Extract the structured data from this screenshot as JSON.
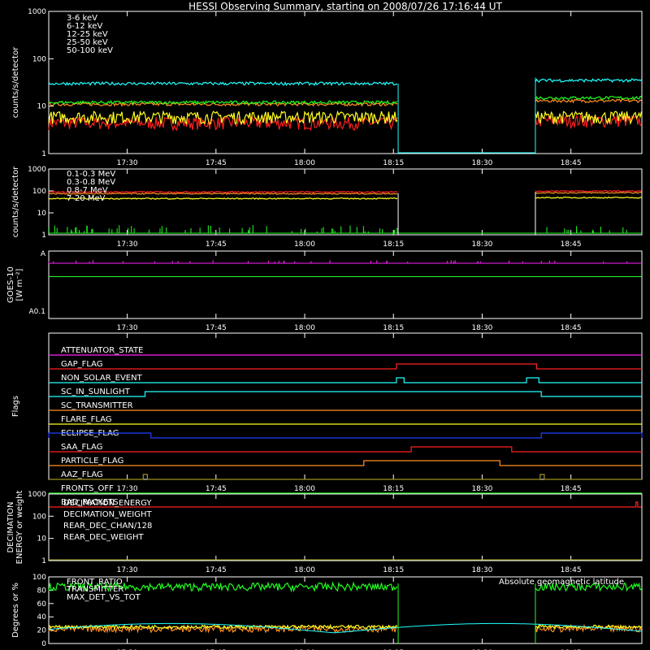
{
  "chart_data": {
    "title": "HESSI Observing Summary, starting on 2008/07/26 17:16:44 UT",
    "time_ticks": [
      "17:30",
      "17:45",
      "18:00",
      "18:15",
      "18:30",
      "18:45"
    ],
    "time_tick_minutes": [
      30,
      45,
      60,
      75,
      90,
      105
    ],
    "time_range_minutes": [
      16.73,
      117
    ],
    "data_gap_minutes": [
      75.8,
      99.0
    ],
    "panels": [
      {
        "type": "line",
        "scale": "log",
        "ylabel": "counts/s/detector",
        "ylim": [
          1,
          1000
        ],
        "yticks": [
          "1",
          "10",
          "100",
          "1000"
        ],
        "series": [
          {
            "name": "3-6 keV",
            "color": "#ff2020",
            "level": 4.5,
            "level_after": 5
          },
          {
            "name": "6-12 keV",
            "color": "#ff9020",
            "level": 11,
            "level_after": 13
          },
          {
            "name": "12-25 keV",
            "color": "#ffff20",
            "level": 6,
            "level_after": 6
          },
          {
            "name": "25-50 keV",
            "color": "#20ff20",
            "level": 12,
            "level_after": 15
          },
          {
            "name": "50-100 keV",
            "color": "#20ffff",
            "level": 30,
            "level_after": 35
          }
        ]
      },
      {
        "type": "line",
        "scale": "log",
        "ylabel": "counts/s/detector",
        "ylim": [
          1,
          1000
        ],
        "yticks": [
          "1",
          "10",
          "100",
          "1000"
        ],
        "series": [
          {
            "name": "0.1-0.3 MeV",
            "color": "#ff2020",
            "level": 90
          },
          {
            "name": "0.3-0.8 MeV",
            "color": "#ff9020",
            "level": 75
          },
          {
            "name": "0.8-7 MeV",
            "color": "#ffff20",
            "level": 45
          },
          {
            "name": "7-20 MeV",
            "color": "#20ff20",
            "level": 1
          }
        ]
      },
      {
        "type": "line",
        "ylabel": "GOES-10",
        "yunit": "[W m⁻²]",
        "yticks": [
          "A",
          "A0.1"
        ],
        "series": [
          {
            "color": "#ff20ff",
            "level_frac": 0.18
          },
          {
            "color": "#20ff20",
            "level_frac": 0.38
          }
        ]
      },
      {
        "type": "flags",
        "ylabel": "Flags",
        "flags": [
          {
            "name": "ATTENUATOR_STATE",
            "color": "#ff20ff",
            "on": []
          },
          {
            "name": "GAP_FLAG",
            "color": "#ff2020",
            "on": [
              [
                75.5,
                99.2
              ]
            ]
          },
          {
            "name": "NON_SOLAR_EVENT",
            "color": "#20ffff",
            "on": [
              [
                75.5,
                76.8
              ],
              [
                97.5,
                99.6
              ]
            ]
          },
          {
            "name": "SC_IN_SUNLIGHT",
            "color": "#20ffff",
            "on": [
              [
                33,
                100
              ]
            ]
          },
          {
            "name": "SC_TRANSMITTER",
            "color": "#ff9020",
            "on": []
          },
          {
            "name": "FLARE_FLAG",
            "color": "#ffff20",
            "on": []
          },
          {
            "name": "ECLIPSE_FLAG",
            "color": "#2040ff",
            "on": [
              [
                0,
                34
              ],
              [
                100,
                117
              ]
            ]
          },
          {
            "name": "SAA_FLAG",
            "color": "#ff2020",
            "on": [
              [
                78,
                95
              ]
            ]
          },
          {
            "name": "PARTICLE_FLAG",
            "color": "#ff9020",
            "on": [
              [
                70,
                93
              ]
            ]
          },
          {
            "name": "AAZ_FLAG",
            "color": "#a09020",
            "on": [
              [
                32.7,
                33.4
              ],
              [
                99.8,
                100.5
              ]
            ]
          },
          {
            "name": "FRONTS_OFF",
            "color": "#20ff20",
            "on": []
          },
          {
            "name": "BAD_PACKETS",
            "color": "#ff2020",
            "on": [
              [
                116,
                116.3
              ]
            ]
          }
        ]
      },
      {
        "type": "line",
        "scale": "log",
        "ylabel": "DECIMATION",
        "ylabel2": "ENERGY or weight",
        "ylim": [
          1,
          1000
        ],
        "yticks": [
          "1",
          "10",
          "100",
          "1000"
        ],
        "series": [
          {
            "name": "DECIMATION_ENERGY",
            "color": "#20ff20"
          },
          {
            "name": "DECIMATION_WEIGHT",
            "color": "#ff9020"
          },
          {
            "name": "REAR_DEC_CHAN/128",
            "color": "#20ffff"
          },
          {
            "name": "REAR_DEC_WEIGHT",
            "color": "#a0a020"
          }
        ]
      },
      {
        "type": "line",
        "ylabel": "Degrees or %",
        "ylim": [
          0,
          100
        ],
        "yticks": [
          "0",
          "20",
          "40",
          "60",
          "80",
          "100"
        ],
        "series": [
          {
            "name": "FRONT_RATIO",
            "color": "#ffff20",
            "level": 25
          },
          {
            "name": "TRANSMITTER",
            "color": "#20ff20",
            "level": 85
          },
          {
            "name": "MAX_DET_VS_TOT",
            "color": "#ff9020",
            "level": 22
          },
          {
            "name": "Absolute geomagnetic latitude",
            "color": "#20ffff"
          }
        ]
      }
    ]
  }
}
